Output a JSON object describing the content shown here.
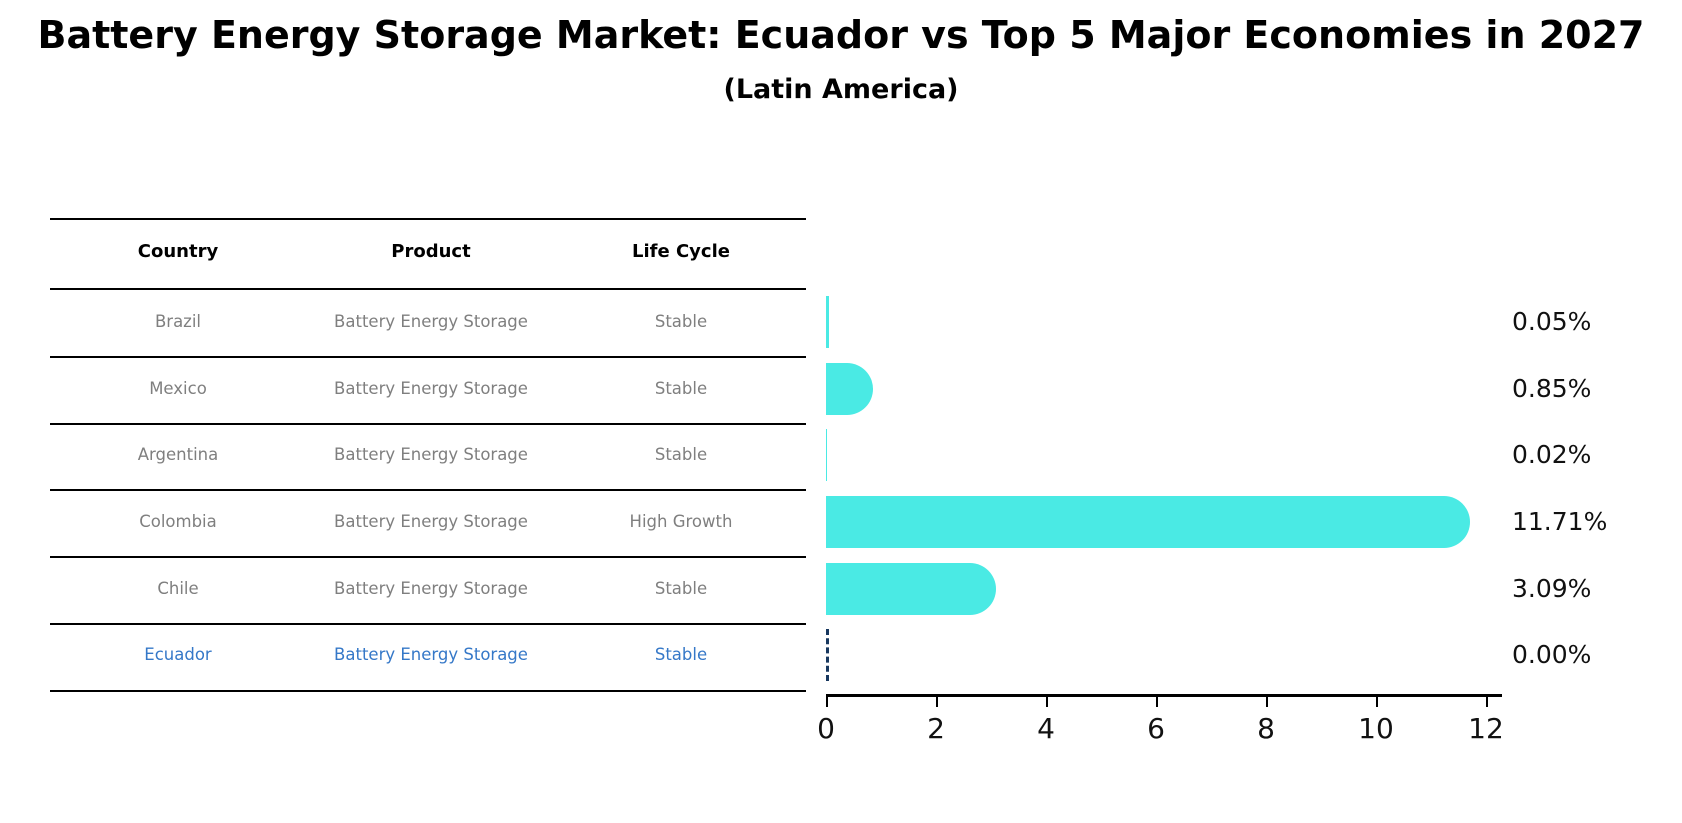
{
  "title": "Battery Energy Storage Market: Ecuador vs Top 5 Major Economies in 2027",
  "subtitle": "(Latin America)",
  "table": {
    "headers": {
      "country": "Country",
      "product": "Product",
      "life_cycle": "Life Cycle"
    },
    "rows": [
      {
        "country": "Brazil",
        "product": "Battery Energy Storage",
        "life_cycle": "Stable",
        "highlight": false
      },
      {
        "country": "Mexico",
        "product": "Battery Energy Storage",
        "life_cycle": "Stable",
        "highlight": false
      },
      {
        "country": "Argentina",
        "product": "Battery Energy Storage",
        "life_cycle": "Stable",
        "highlight": false
      },
      {
        "country": "Colombia",
        "product": "Battery Energy Storage",
        "life_cycle": "High Growth",
        "highlight": false
      },
      {
        "country": "Chile",
        "product": "Battery Energy Storage",
        "life_cycle": "Stable",
        "highlight": false
      },
      {
        "country": "Ecuador",
        "product": "Battery Energy Storage",
        "life_cycle": "Stable",
        "highlight": true
      }
    ]
  },
  "chart_data": {
    "type": "bar",
    "orientation": "horizontal",
    "title": "Battery Energy Storage Market: Ecuador vs Top 5 Major Economies in 2027",
    "subtitle": "(Latin America)",
    "categories": [
      "Brazil",
      "Mexico",
      "Argentina",
      "Colombia",
      "Chile",
      "Ecuador"
    ],
    "values": [
      0.05,
      0.85,
      0.02,
      11.71,
      3.09,
      0.0
    ],
    "value_labels": [
      "0.05%",
      "0.85%",
      "0.02%",
      "11.71%",
      "3.09%",
      "0.00%"
    ],
    "x_ticks": [
      0,
      2,
      4,
      6,
      8,
      10,
      12
    ],
    "x_tick_labels": [
      "0",
      "2",
      "4",
      "6",
      "8",
      "10",
      "12"
    ],
    "xlim": [
      0,
      12
    ],
    "xlabel": "",
    "ylabel": "",
    "grid": false,
    "legend": false,
    "bar_color": "#4AEAE4",
    "highlight_index": 5,
    "highlight_dash_color": "#17375E",
    "highlight_text_color": "#3578C8",
    "text_color": "#7F7F7F",
    "axis_color": "#000000"
  }
}
